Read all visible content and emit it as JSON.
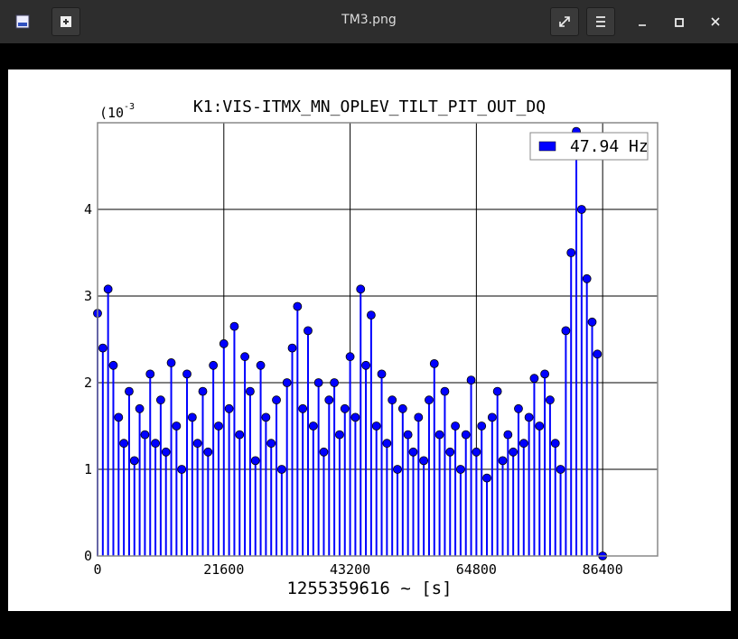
{
  "window": {
    "title": "TM3.png"
  },
  "chart_data": {
    "type": "stem",
    "title": "K1:VIS-ITMX_MN_OPLEV_TILT_PIT_OUT_DQ",
    "x_label": "1255359616 ~ [s]",
    "y_scale_label": "(10",
    "y_scale_exponent": "-3",
    "xlim": [
      0,
      95800
    ],
    "ylim": [
      0,
      5
    ],
    "xticks": [
      0,
      21600,
      43200,
      64800,
      86400
    ],
    "yticks": [
      0,
      1,
      2,
      3,
      4
    ],
    "grid": true,
    "legend": "upper right",
    "x": [
      0,
      900,
      1800,
      2700,
      3600,
      4500,
      5400,
      6300,
      7200,
      8100,
      9000,
      9900,
      10800,
      11700,
      12600,
      13500,
      14400,
      15300,
      16200,
      17100,
      18000,
      18900,
      19800,
      20700,
      21600,
      22500,
      23400,
      24300,
      25200,
      26100,
      27000,
      27900,
      28800,
      29700,
      30600,
      31500,
      32400,
      33300,
      34200,
      35100,
      36000,
      36900,
      37800,
      38700,
      39600,
      40500,
      41400,
      42300,
      43200,
      44100,
      45000,
      45900,
      46800,
      47700,
      48600,
      49500,
      50400,
      51300,
      52200,
      53100,
      54000,
      54900,
      55800,
      56700,
      57600,
      58500,
      59400,
      60300,
      61200,
      62100,
      63000,
      63900,
      64800,
      65700,
      66600,
      67500,
      68400,
      69300,
      70200,
      71100,
      72000,
      72900,
      73800,
      74700,
      75600,
      76500,
      77400,
      78300,
      79200,
      80100,
      81000,
      81900,
      82800,
      83700,
      84600,
      85500,
      86400
    ],
    "series": [
      {
        "name": "47.94 Hz",
        "color": "#0000ff",
        "values": [
          2.8,
          2.4,
          3.08,
          2.2,
          1.6,
          1.3,
          1.9,
          1.1,
          1.7,
          1.4,
          2.1,
          1.3,
          1.8,
          1.2,
          2.23,
          1.5,
          1.0,
          2.1,
          1.6,
          1.3,
          1.9,
          1.2,
          2.2,
          1.5,
          2.45,
          1.7,
          2.65,
          1.4,
          2.3,
          1.9,
          1.1,
          2.2,
          1.6,
          1.3,
          1.8,
          1.0,
          2.0,
          2.4,
          2.88,
          1.7,
          2.6,
          1.5,
          2.0,
          1.2,
          1.8,
          2.0,
          1.4,
          1.7,
          2.3,
          1.6,
          3.08,
          2.2,
          2.78,
          1.5,
          2.1,
          1.3,
          1.8,
          1.0,
          1.7,
          1.4,
          1.2,
          1.6,
          1.1,
          1.8,
          2.22,
          1.4,
          1.9,
          1.2,
          1.5,
          1.0,
          1.4,
          2.03,
          1.2,
          1.5,
          0.9,
          1.6,
          1.9,
          1.1,
          1.4,
          1.2,
          1.7,
          1.3,
          1.6,
          2.05,
          1.5,
          2.1,
          1.8,
          1.3,
          1.0,
          2.6,
          3.5,
          4.9,
          4.0,
          3.2,
          2.7,
          2.33,
          0
        ]
      }
    ]
  }
}
